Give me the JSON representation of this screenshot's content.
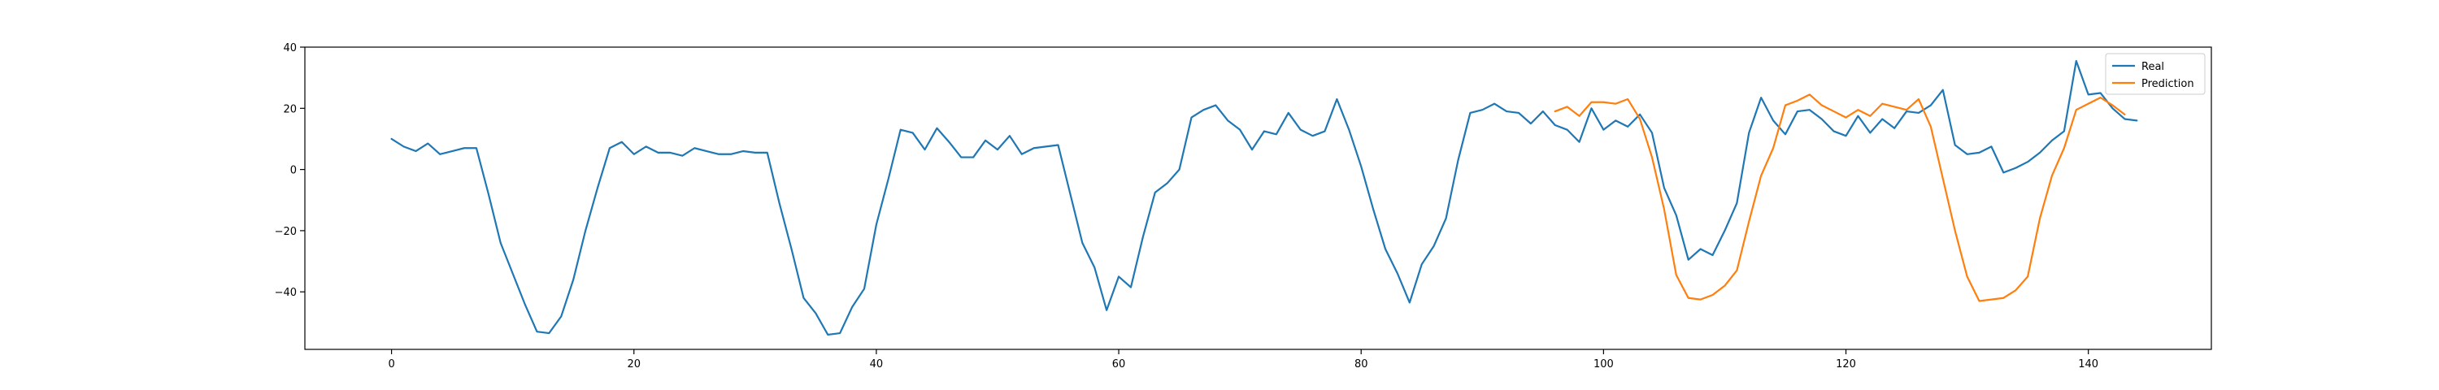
{
  "chart_data": {
    "type": "line",
    "title": "",
    "xlabel": "",
    "ylabel": "",
    "xlim": [
      -7.15,
      150.15
    ],
    "ylim": [
      -58.8,
      40
    ],
    "xticks": [
      0,
      20,
      40,
      60,
      80,
      100,
      120,
      140
    ],
    "yticks": [
      -40,
      -20,
      0,
      20,
      40
    ],
    "grid": false,
    "legend_position": "top-right",
    "series": [
      {
        "name": "Real",
        "color": "#1f77b4",
        "x_start": 0,
        "values": [
          10.0,
          7.5,
          6.0,
          8.5,
          5.0,
          6.0,
          7.0,
          7.0,
          -8.0,
          -24.0,
          -34.0,
          -44.0,
          -53.0,
          -53.5,
          -48.0,
          -36.0,
          -20.0,
          -6.0,
          7.0,
          9.0,
          5.0,
          7.5,
          5.5,
          5.5,
          4.5,
          7.0,
          6.0,
          5.0,
          5.0,
          6.0,
          5.5,
          5.5,
          -11.0,
          -26.0,
          -42.0,
          -47.0,
          -54.0,
          -53.5,
          -45.0,
          -39.0,
          -18.0,
          -3.0,
          13.0,
          12.0,
          6.5,
          13.5,
          9.0,
          4.0,
          4.0,
          9.5,
          6.5,
          11.0,
          5.0,
          7.0,
          7.5,
          8.0,
          -8.0,
          -24.0,
          -32.0,
          -46.0,
          -35.0,
          -38.5,
          -22.0,
          -7.5,
          -4.5,
          0.0,
          17.0,
          19.5,
          21.0,
          16.0,
          13.0,
          6.5,
          12.5,
          11.5,
          18.5,
          13.0,
          11.0,
          12.5,
          23.0,
          13.0,
          1.0,
          -13.0,
          -26.0,
          -34.0,
          -43.5,
          -31.0,
          -25.0,
          -16.0,
          3.0,
          18.5,
          19.5,
          21.5,
          19.0,
          18.5,
          15.0,
          19.0,
          14.5,
          13.0,
          9.0,
          20.0,
          13.0,
          16.0,
          14.0,
          18.0,
          12.0,
          -6.0,
          -15.0,
          -29.5,
          -26.0,
          -28.0,
          -20.0,
          -11.0,
          12.0,
          23.5,
          16.0,
          11.5,
          19.0,
          19.5,
          16.5,
          12.5,
          11.0,
          17.5,
          12.0,
          16.5,
          13.5,
          19.0,
          18.5,
          21.0,
          26.0,
          8.0,
          5.0,
          5.5,
          7.5,
          -1.0,
          0.5,
          2.5,
          5.5,
          9.5,
          12.5,
          35.5,
          24.5,
          25.0,
          20.0,
          16.5,
          16.0
        ]
      },
      {
        "name": "Prediction",
        "color": "#ff7f0e",
        "x_start": 96,
        "values": [
          19.0,
          20.5,
          17.5,
          22.0,
          22.0,
          21.5,
          23.0,
          16.5,
          4.0,
          -13.0,
          -34.5,
          -42.0,
          -42.5,
          -41.0,
          -38.0,
          -33.0,
          -17.0,
          -2.0,
          7.0,
          21.0,
          22.5,
          24.5,
          21.0,
          19.0,
          17.0,
          19.5,
          17.5,
          21.5,
          20.5,
          19.5,
          23.0,
          14.0,
          -3.0,
          -20.0,
          -35.0,
          -43.0,
          -42.5,
          -42.0,
          -39.5,
          -35.0,
          -16.0,
          -2.0,
          7.0,
          19.5,
          21.5,
          23.5,
          21.0,
          18.0
        ]
      }
    ]
  }
}
